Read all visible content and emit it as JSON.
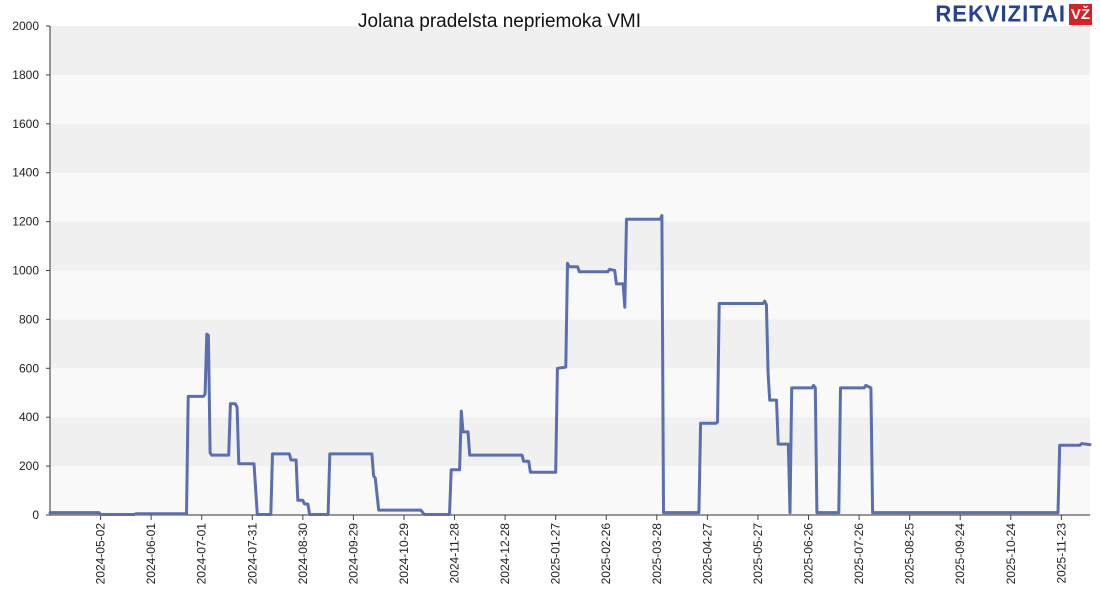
{
  "brand": {
    "text": "REKVIZITAI",
    "badge": "VŽ",
    "text_color": "#24428f",
    "badge_color": "#d92026"
  },
  "chart_data": {
    "type": "line",
    "title": "Jolana pradelsta nepriemoka VMI",
    "xlabel": "",
    "ylabel": "",
    "ylim": [
      0,
      2000
    ],
    "yticks": [
      0,
      200,
      400,
      600,
      800,
      1000,
      1200,
      1400,
      1600,
      1800,
      2000
    ],
    "xlim": [
      "2024-04-02",
      "2025-12-10"
    ],
    "xticks": [
      "2024-05-02",
      "2024-06-01",
      "2024-07-01",
      "2024-07-31",
      "2024-08-30",
      "2024-09-29",
      "2024-10-29",
      "2024-11-28",
      "2024-12-28",
      "2025-01-27",
      "2025-02-26",
      "2025-03-28",
      "2025-04-27",
      "2025-05-27",
      "2025-06-26",
      "2025-07-26",
      "2025-08-25",
      "2025-09-24",
      "2025-10-24",
      "2025-11-23"
    ],
    "grid": "horizontal bands",
    "legend": "none",
    "line_color": "#5b6fb0",
    "series": [
      {
        "points": [
          [
            "2024-04-02",
            10
          ],
          [
            "2024-05-01",
            10
          ],
          [
            "2024-05-02",
            2
          ],
          [
            "2024-05-22",
            2
          ],
          [
            "2024-05-23",
            5
          ],
          [
            "2024-06-22",
            5
          ],
          [
            "2024-06-23",
            485
          ],
          [
            "2024-07-02",
            485
          ],
          [
            "2024-07-03",
            495
          ],
          [
            "2024-07-04",
            740
          ],
          [
            "2024-07-05",
            735
          ],
          [
            "2024-07-06",
            255
          ],
          [
            "2024-07-07",
            245
          ],
          [
            "2024-07-17",
            245
          ],
          [
            "2024-07-18",
            455
          ],
          [
            "2024-07-21",
            455
          ],
          [
            "2024-07-22",
            440
          ],
          [
            "2024-07-23",
            210
          ],
          [
            "2024-08-01",
            210
          ],
          [
            "2024-08-03",
            2
          ],
          [
            "2024-08-11",
            2
          ],
          [
            "2024-08-12",
            250
          ],
          [
            "2024-08-22",
            250
          ],
          [
            "2024-08-23",
            225
          ],
          [
            "2024-08-26",
            225
          ],
          [
            "2024-08-27",
            60
          ],
          [
            "2024-08-30",
            60
          ],
          [
            "2024-08-31",
            45
          ],
          [
            "2024-09-02",
            45
          ],
          [
            "2024-09-03",
            2
          ],
          [
            "2024-09-14",
            2
          ],
          [
            "2024-09-15",
            250
          ],
          [
            "2024-10-10",
            250
          ],
          [
            "2024-10-11",
            160
          ],
          [
            "2024-10-12",
            150
          ],
          [
            "2024-10-14",
            20
          ],
          [
            "2024-11-08",
            20
          ],
          [
            "2024-11-10",
            2
          ],
          [
            "2024-11-25",
            2
          ],
          [
            "2024-11-26",
            185
          ],
          [
            "2024-12-01",
            185
          ],
          [
            "2024-12-02",
            425
          ],
          [
            "2024-12-03",
            340
          ],
          [
            "2024-12-06",
            340
          ],
          [
            "2024-12-07",
            245
          ],
          [
            "2025-01-07",
            245
          ],
          [
            "2025-01-08",
            220
          ],
          [
            "2025-01-11",
            220
          ],
          [
            "2025-01-12",
            175
          ],
          [
            "2025-01-27",
            175
          ],
          [
            "2025-01-28",
            600
          ],
          [
            "2025-02-02",
            605
          ],
          [
            "2025-02-03",
            1030
          ],
          [
            "2025-02-04",
            1015
          ],
          [
            "2025-02-09",
            1015
          ],
          [
            "2025-02-10",
            995
          ],
          [
            "2025-02-27",
            995
          ],
          [
            "2025-02-28",
            1005
          ],
          [
            "2025-03-03",
            1000
          ],
          [
            "2025-03-04",
            945
          ],
          [
            "2025-03-08",
            945
          ],
          [
            "2025-03-09",
            850
          ],
          [
            "2025-03-10",
            1210
          ],
          [
            "2025-03-30",
            1210
          ],
          [
            "2025-03-31",
            1225
          ],
          [
            "2025-04-01",
            10
          ],
          [
            "2025-04-22",
            10
          ],
          [
            "2025-04-23",
            375
          ],
          [
            "2025-05-02",
            375
          ],
          [
            "2025-05-03",
            380
          ],
          [
            "2025-05-04",
            865
          ],
          [
            "2025-05-30",
            865
          ],
          [
            "2025-05-31",
            875
          ],
          [
            "2025-06-01",
            860
          ],
          [
            "2025-06-02",
            580
          ],
          [
            "2025-06-03",
            470
          ],
          [
            "2025-06-07",
            470
          ],
          [
            "2025-06-08",
            290
          ],
          [
            "2025-06-14",
            290
          ],
          [
            "2025-06-15",
            10
          ],
          [
            "2025-06-16",
            520
          ],
          [
            "2025-06-28",
            520
          ],
          [
            "2025-06-29",
            530
          ],
          [
            "2025-06-30",
            520
          ],
          [
            "2025-07-01",
            10
          ],
          [
            "2025-07-14",
            10
          ],
          [
            "2025-07-15",
            520
          ],
          [
            "2025-07-29",
            520
          ],
          [
            "2025-07-30",
            530
          ],
          [
            "2025-08-02",
            520
          ],
          [
            "2025-08-03",
            10
          ],
          [
            "2025-11-21",
            10
          ],
          [
            "2025-11-22",
            285
          ],
          [
            "2025-12-04",
            285
          ],
          [
            "2025-12-05",
            292
          ],
          [
            "2025-12-10",
            288
          ]
        ]
      }
    ]
  }
}
